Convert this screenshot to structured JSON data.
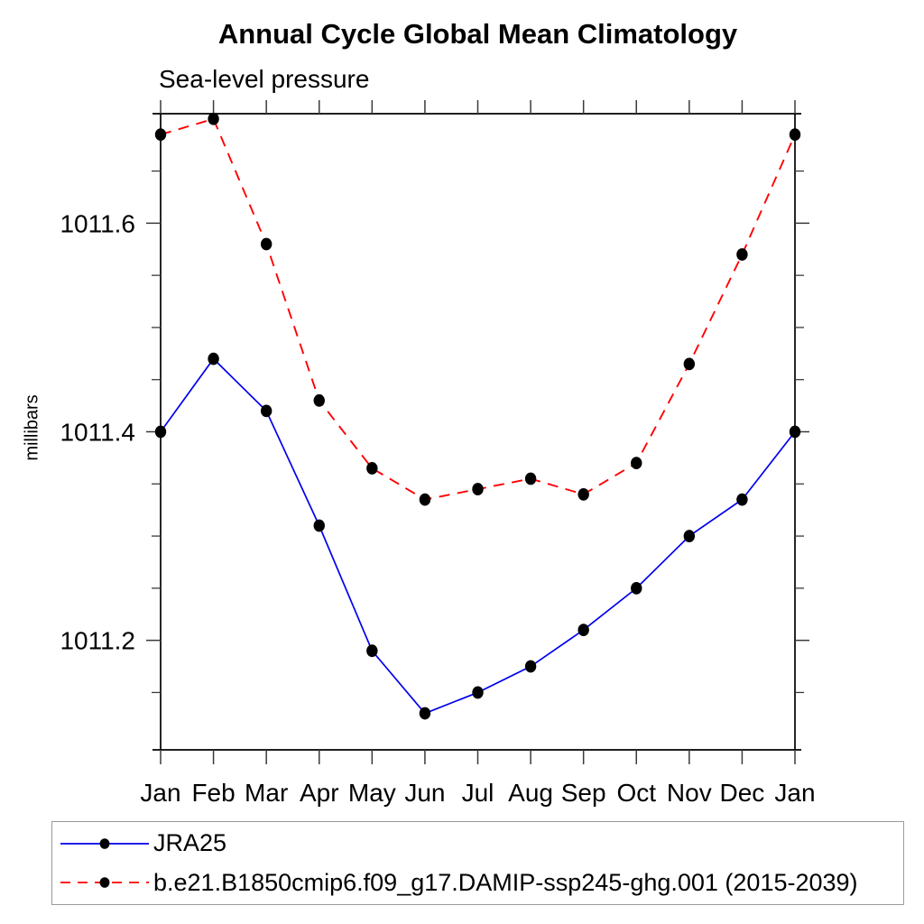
{
  "chart_data": {
    "type": "line",
    "title": "Annual Cycle Global Mean Climatology",
    "subtitle": "Sea-level pressure",
    "xlabel": "",
    "ylabel": "millibars",
    "categories": [
      "Jan",
      "Feb",
      "Mar",
      "Apr",
      "May",
      "Jun",
      "Jul",
      "Aug",
      "Sep",
      "Oct",
      "Nov",
      "Dec",
      "Jan"
    ],
    "ylim": [
      1011.095,
      1011.705
    ],
    "y_major_ticks": [
      1011.2,
      1011.4,
      1011.6
    ],
    "y_major_tick_labels": [
      "1011.2",
      "1011.4",
      "1011.6"
    ],
    "y_minor_ticks": [
      1011.15,
      1011.25,
      1011.3,
      1011.35,
      1011.45,
      1011.5,
      1011.55,
      1011.65
    ],
    "grid": false,
    "legend_position": "bottom-left-box",
    "axis_color": "#000000",
    "tick_color": "#3a3a3a",
    "legend_border_color": "#9a9a9a",
    "marker": "filled-circle",
    "marker_color": "#000000",
    "series": [
      {
        "name": "JRA25",
        "color": "#0000ee",
        "line_style": "solid",
        "values": [
          1011.4,
          1011.47,
          1011.42,
          1011.31,
          1011.19,
          1011.13,
          1011.15,
          1011.175,
          1011.21,
          1011.25,
          1011.3,
          1011.335,
          1011.4
        ]
      },
      {
        "name": "b.e21.B1850cmip6.f09_g17.DAMIP-ssp245-ghg.001 (2015-2039)",
        "color": "#ff0000",
        "line_style": "dashed",
        "values": [
          1011.685,
          1011.7,
          1011.58,
          1011.43,
          1011.365,
          1011.335,
          1011.345,
          1011.355,
          1011.34,
          1011.37,
          1011.465,
          1011.57,
          1011.685
        ]
      }
    ]
  }
}
